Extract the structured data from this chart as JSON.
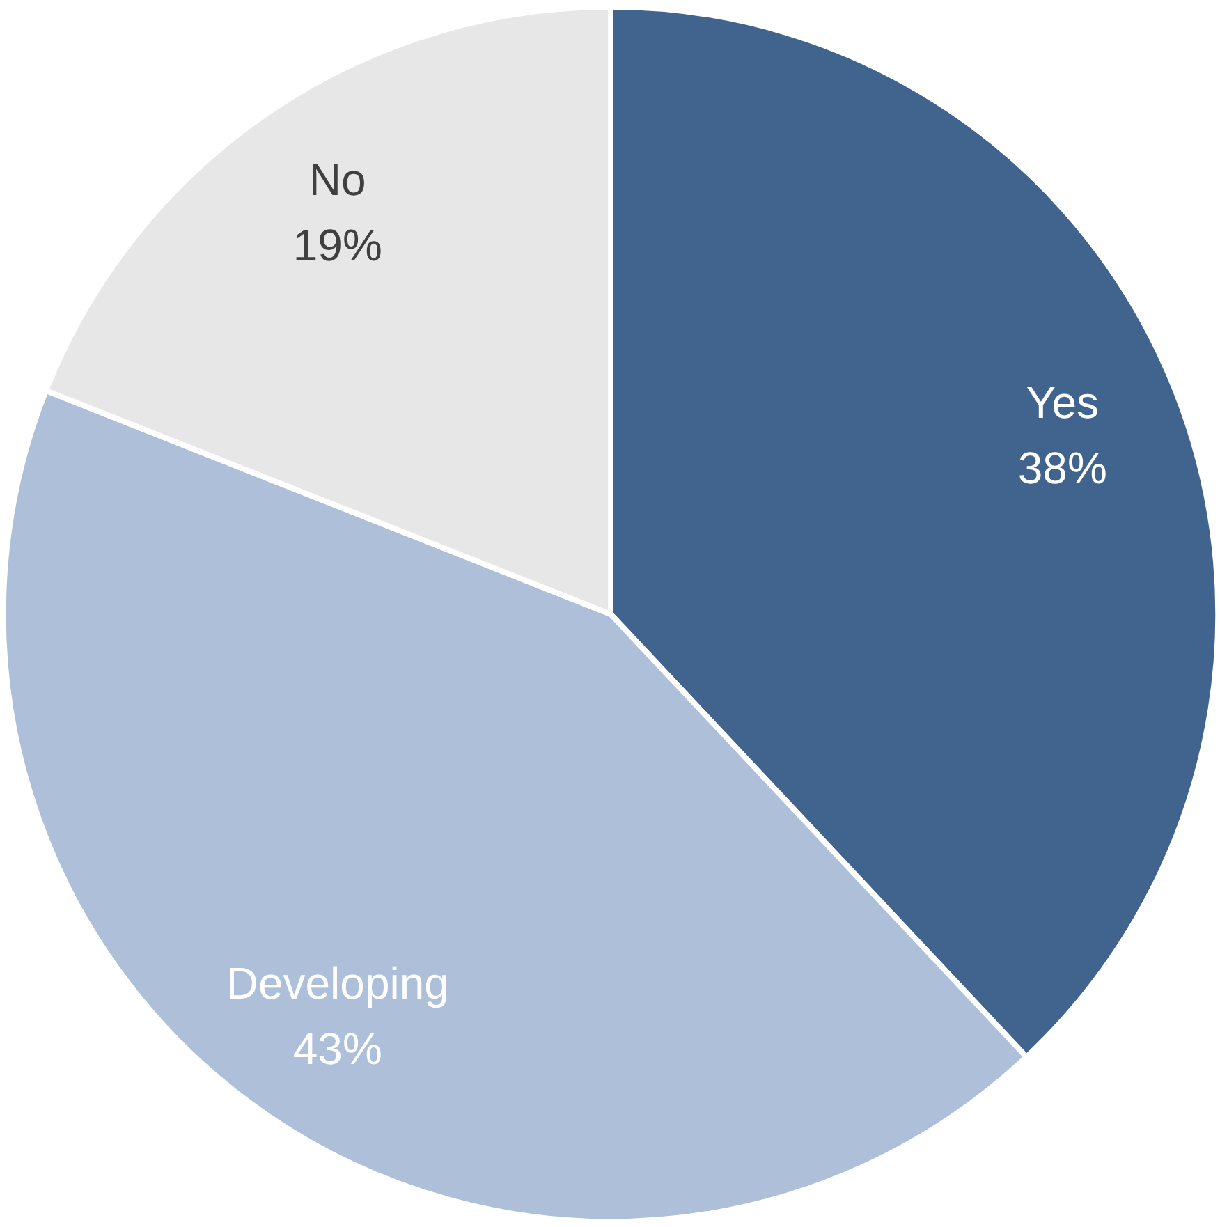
{
  "chart_data": {
    "type": "pie",
    "categories": [
      "Yes",
      "Developing",
      "No"
    ],
    "values": [
      38,
      43,
      19
    ],
    "value_labels": [
      "38%",
      "43%",
      "19%"
    ],
    "colors": [
      "#41648f",
      "#adbfd9",
      "#e7e7e7"
    ]
  }
}
